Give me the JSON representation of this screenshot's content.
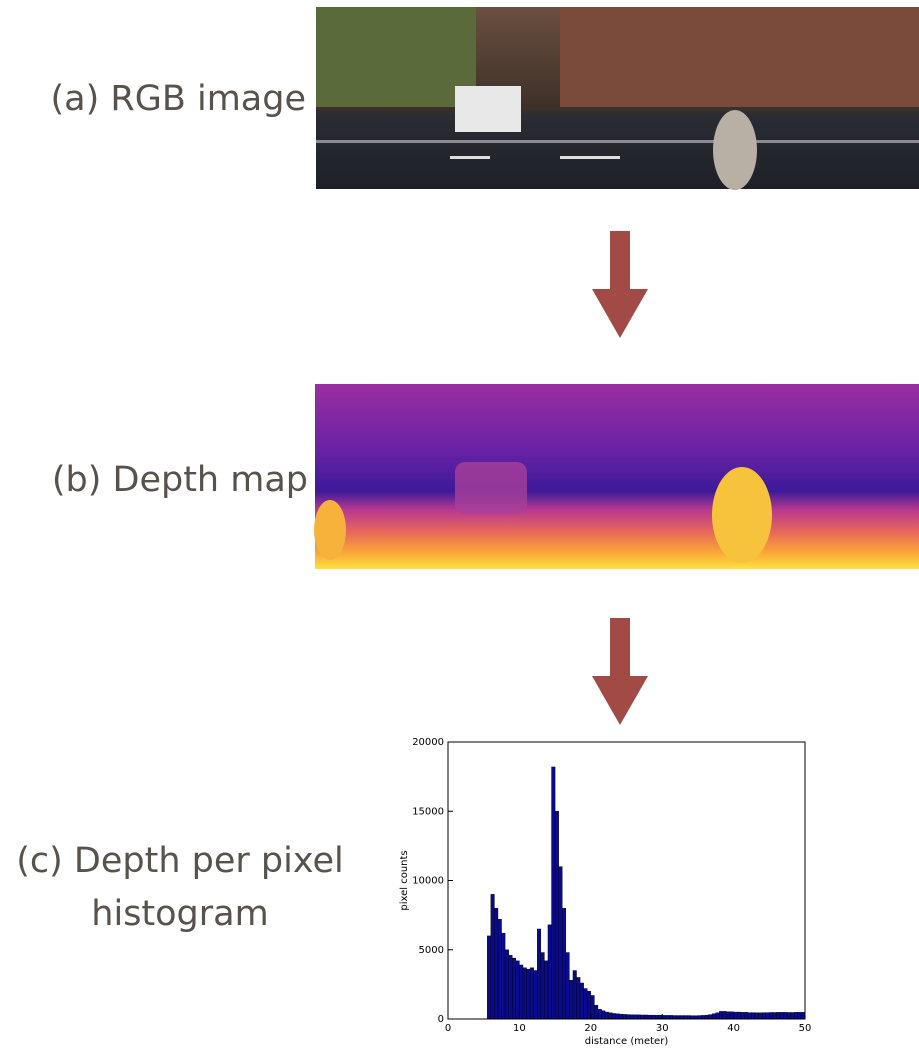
{
  "labels": {
    "rgb": "(a) RGB image",
    "depth": "(b) Depth map",
    "hist_line1": "(c) Depth per pixel",
    "hist_line2": "histogram"
  },
  "chart_data": {
    "type": "histogram",
    "xlabel": "distance (meter)",
    "ylabel": "pixel counts",
    "color": "#0a0a8c",
    "xlim": [
      0,
      50
    ],
    "ylim": [
      0,
      20000
    ],
    "xticks": [
      0,
      10,
      20,
      30,
      40,
      50
    ],
    "yticks": [
      0,
      5000,
      10000,
      15000,
      20000
    ],
    "bins": [
      5.5,
      6,
      6.5,
      7,
      7.5,
      8,
      8.5,
      9,
      9.5,
      10,
      10.5,
      11,
      11.5,
      12,
      12.5,
      13,
      13.5,
      14,
      14.5,
      15,
      15.5,
      16,
      16.5,
      17,
      17.5,
      18,
      18.5,
      19,
      19.5,
      20,
      20.5,
      21,
      21.5,
      22,
      22.5,
      23,
      23.5,
      24,
      24.5,
      25,
      25.5,
      26,
      26.5,
      27,
      27.5,
      28,
      28.5,
      29,
      29.5,
      30,
      30.5,
      31,
      31.5,
      32,
      32.5,
      33,
      33.5,
      34,
      34.5,
      35,
      35.5,
      36,
      36.5,
      37,
      37.5,
      38,
      38.5,
      39,
      39.5,
      40,
      40.5,
      41,
      41.5,
      42,
      42.5,
      43,
      43.5,
      44,
      44.5,
      45,
      45.5,
      46,
      46.5,
      47,
      47.5,
      48,
      48.5,
      49,
      49.5,
      50
    ],
    "values": [
      6000,
      9000,
      8000,
      7200,
      6200,
      5000,
      4600,
      4400,
      4200,
      3900,
      3700,
      3600,
      3700,
      3500,
      6500,
      4800,
      4200,
      6800,
      18200,
      15000,
      11000,
      8000,
      4800,
      2800,
      3500,
      3000,
      2600,
      2200,
      2000,
      1700,
      1000,
      700,
      600,
      500,
      450,
      400,
      380,
      350,
      330,
      320,
      310,
      300,
      300,
      290,
      290,
      280,
      280,
      270,
      270,
      260,
      260,
      260,
      250,
      250,
      250,
      250,
      250,
      240,
      240,
      250,
      260,
      280,
      320,
      380,
      450,
      550,
      550,
      520,
      520,
      500,
      500,
      480,
      480,
      460,
      460,
      450,
      450,
      460,
      460,
      470,
      470,
      480,
      480,
      480,
      470,
      470,
      480,
      480,
      480
    ]
  }
}
